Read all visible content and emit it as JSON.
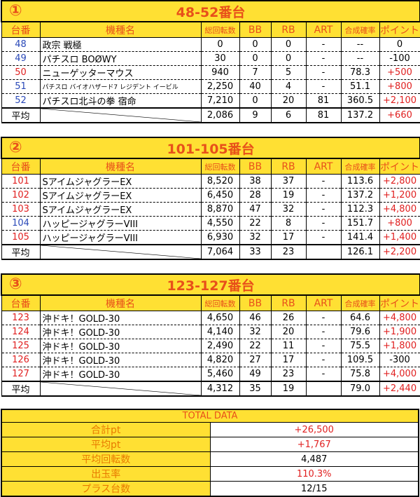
{
  "headers": [
    "台番",
    "機種名",
    "総回転数",
    "BB",
    "RB",
    "ART",
    "合成確率",
    "ポイント"
  ],
  "avg_label": "平均",
  "colors": {
    "yellow": "#ffe033",
    "title_text": "#e8501a",
    "blue": "#2a49b8",
    "red": "#e02020"
  },
  "sections": [
    {
      "num": "①",
      "title": "48-52番台",
      "rows": [
        {
          "no": "48",
          "no_color": "blue",
          "name": "政宗 戦極",
          "spins": "0",
          "bb": "0",
          "rb": "0",
          "art": "-",
          "rate": "--",
          "pt": "0",
          "pt_color": "black"
        },
        {
          "no": "49",
          "no_color": "blue",
          "name": "パチスロ BOØWY",
          "spins": "30",
          "bb": "0",
          "rb": "0",
          "art": "-",
          "rate": "--",
          "pt": "-100",
          "pt_color": "black"
        },
        {
          "no": "50",
          "no_color": "red",
          "name": "ニューゲッターマウス",
          "spins": "940",
          "bb": "7",
          "rb": "5",
          "art": "-",
          "rate": "78.3",
          "pt": "+500",
          "pt_color": "red"
        },
        {
          "no": "51",
          "no_color": "blue",
          "name": "パチスロ バイオハザード7 レジデント イービル",
          "small": true,
          "spins": "2,250",
          "bb": "40",
          "rb": "4",
          "art": "-",
          "rate": "51.1",
          "pt": "+800",
          "pt_color": "red"
        },
        {
          "no": "52",
          "no_color": "blue",
          "name": "パチスロ北斗の拳 宿命",
          "spins": "7,210",
          "bb": "0",
          "rb": "20",
          "art": "81",
          "rate": "360.5",
          "pt": "+2,100",
          "pt_color": "red"
        }
      ],
      "avg": {
        "spins": "2,086",
        "bb": "9",
        "rb": "6",
        "art": "81",
        "rate": "137.2",
        "pt": "+660"
      }
    },
    {
      "num": "②",
      "title": "101-105番台",
      "rows": [
        {
          "no": "101",
          "no_color": "red",
          "name": "SアイムジャグラーEX",
          "spins": "8,520",
          "bb": "38",
          "rb": "37",
          "art": "-",
          "rate": "113.6",
          "pt": "+2,800",
          "pt_color": "red"
        },
        {
          "no": "102",
          "no_color": "red",
          "name": "SアイムジャグラーEX",
          "spins": "6,450",
          "bb": "28",
          "rb": "19",
          "art": "-",
          "rate": "137.2",
          "pt": "+1,200",
          "pt_color": "red"
        },
        {
          "no": "103",
          "no_color": "red",
          "name": "SアイムジャグラーEX",
          "spins": "8,870",
          "bb": "47",
          "rb": "32",
          "art": "-",
          "rate": "112.3",
          "pt": "+4,800",
          "pt_color": "red"
        },
        {
          "no": "104",
          "no_color": "blue",
          "name": "ハッピージャグラーVIII",
          "spins": "4,550",
          "bb": "22",
          "rb": "8",
          "art": "-",
          "rate": "151.7",
          "pt": "+800",
          "pt_color": "red"
        },
        {
          "no": "105",
          "no_color": "red",
          "name": "ハッピージャグラーVIII",
          "spins": "6,930",
          "bb": "32",
          "rb": "17",
          "art": "-",
          "rate": "141.4",
          "pt": "+1,400",
          "pt_color": "red"
        }
      ],
      "avg": {
        "spins": "7,064",
        "bb": "33",
        "rb": "23",
        "art": "",
        "rate": "126.1",
        "pt": "+2,200"
      }
    },
    {
      "num": "③",
      "title": "123-127番台",
      "rows": [
        {
          "no": "123",
          "no_color": "red",
          "name": "沖ドキ！GOLD-30",
          "spins": "4,650",
          "bb": "46",
          "rb": "26",
          "art": "-",
          "rate": "64.6",
          "pt": "+4,800",
          "pt_color": "red"
        },
        {
          "no": "124",
          "no_color": "red",
          "name": "沖ドキ！GOLD-30",
          "spins": "4,140",
          "bb": "32",
          "rb": "20",
          "art": "-",
          "rate": "79.6",
          "pt": "+1,900",
          "pt_color": "red"
        },
        {
          "no": "125",
          "no_color": "red",
          "name": "沖ドキ！GOLD-30",
          "spins": "2,490",
          "bb": "22",
          "rb": "11",
          "art": "-",
          "rate": "75.5",
          "pt": "+1,800",
          "pt_color": "red"
        },
        {
          "no": "126",
          "no_color": "red",
          "name": "沖ドキ！GOLD-30",
          "spins": "4,820",
          "bb": "27",
          "rb": "17",
          "art": "-",
          "rate": "109.5",
          "pt": "-300",
          "pt_color": "black"
        },
        {
          "no": "127",
          "no_color": "red",
          "name": "沖ドキ！GOLD-30",
          "spins": "5,460",
          "bb": "49",
          "rb": "23",
          "art": "-",
          "rate": "75.8",
          "pt": "+4,000",
          "pt_color": "red"
        }
      ],
      "avg": {
        "spins": "4,312",
        "bb": "35",
        "rb": "19",
        "art": "",
        "rate": "79.0",
        "pt": "+2,440"
      }
    }
  ],
  "total": {
    "title": "TOTAL DATA",
    "rows": [
      {
        "label": "合計pt",
        "value": "+26,500",
        "color": "red"
      },
      {
        "label": "平均pt",
        "value": "+1,767",
        "color": "red"
      },
      {
        "label": "平均回転数",
        "value": "4,487",
        "color": "black"
      },
      {
        "label": "出玉率",
        "value": "110.3%",
        "color": "red"
      },
      {
        "label": "プラス台数",
        "value": "12/15",
        "color": "black"
      }
    ]
  }
}
